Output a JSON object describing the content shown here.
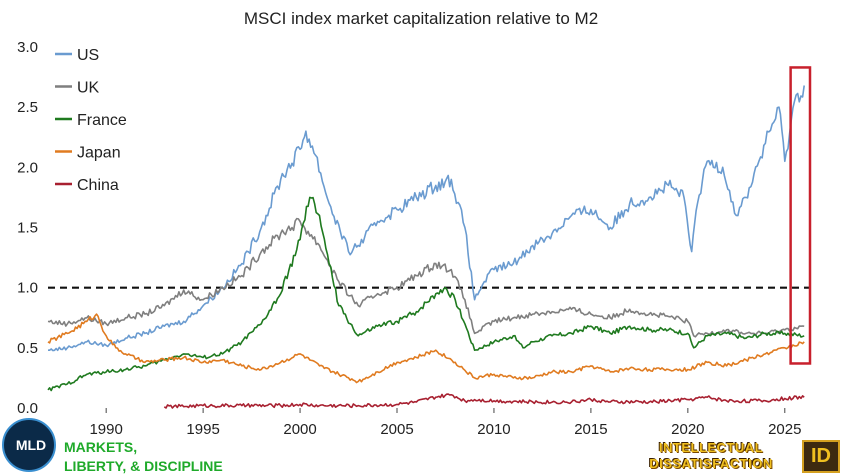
{
  "chart_data": {
    "type": "line",
    "title": "MSCI index market capitalization relative to M2",
    "xlabel": "",
    "ylabel": "",
    "xlim": [
      1987.0,
      2026.3
    ],
    "ylim": [
      0.0,
      3.0
    ],
    "x_ticks": [
      1990,
      1995,
      2000,
      2005,
      2010,
      2015,
      2020,
      2025
    ],
    "y_ticks": [
      "0.0",
      "0.5",
      "1.0",
      "1.5",
      "2.0",
      "2.5",
      "3.0"
    ],
    "reference_line": {
      "y": 1.0,
      "style": "dashed",
      "color": "#111111"
    },
    "highlight": {
      "x_from": 2025.3,
      "x_to": 2026.3,
      "y_from": 0.37,
      "y_to": 2.83,
      "color": "#c8202c"
    },
    "legend_position": "top-left",
    "series": [
      {
        "name": "US",
        "color": "#6a9bd0",
        "x": [
          1987.0,
          1988.0,
          1989.0,
          1990.0,
          1991.0,
          1992.0,
          1993.0,
          1994.0,
          1995.0,
          1996.0,
          1997.0,
          1998.0,
          1999.0,
          2000.0,
          2000.3,
          2000.8,
          2001.5,
          2002.5,
          2003.0,
          2004.0,
          2005.0,
          2006.0,
          2007.0,
          2007.8,
          2008.5,
          2009.0,
          2009.5,
          2010.0,
          2011.0,
          2012.0,
          2013.0,
          2014.0,
          2015.0,
          2016.0,
          2017.0,
          2018.0,
          2019.0,
          2019.8,
          2020.2,
          2020.5,
          2021.0,
          2021.8,
          2022.5,
          2023.0,
          2024.0,
          2024.7,
          2025.0,
          2025.5,
          2026.0
        ],
        "values": [
          0.48,
          0.5,
          0.55,
          0.52,
          0.58,
          0.62,
          0.68,
          0.72,
          0.85,
          1.0,
          1.2,
          1.5,
          1.9,
          2.15,
          2.3,
          2.1,
          1.7,
          1.3,
          1.35,
          1.55,
          1.65,
          1.75,
          1.85,
          1.9,
          1.5,
          0.9,
          1.05,
          1.15,
          1.2,
          1.35,
          1.45,
          1.6,
          1.65,
          1.5,
          1.7,
          1.75,
          1.85,
          1.75,
          1.3,
          1.7,
          2.05,
          2.0,
          1.6,
          1.75,
          2.2,
          2.5,
          2.05,
          2.55,
          2.68
        ]
      },
      {
        "name": "UK",
        "color": "#7f7f7f",
        "x": [
          1987.0,
          1988.0,
          1989.0,
          1990.0,
          1991.0,
          1992.0,
          1993.0,
          1994.0,
          1995.0,
          1996.0,
          1997.0,
          1998.0,
          1999.0,
          2000.0,
          2001.0,
          2002.0,
          2003.0,
          2004.0,
          2005.0,
          2006.0,
          2007.0,
          2007.8,
          2008.5,
          2009.0,
          2010.0,
          2011.0,
          2012.0,
          2013.0,
          2014.0,
          2015.0,
          2016.0,
          2017.0,
          2018.0,
          2019.0,
          2020.0,
          2020.3,
          2021.0,
          2022.0,
          2023.0,
          2024.0,
          2025.0,
          2026.0
        ],
        "values": [
          0.72,
          0.7,
          0.75,
          0.7,
          0.75,
          0.78,
          0.85,
          0.98,
          0.9,
          1.0,
          1.1,
          1.3,
          1.45,
          1.55,
          1.35,
          1.05,
          0.85,
          0.95,
          1.0,
          1.1,
          1.2,
          1.15,
          0.9,
          0.62,
          0.72,
          0.75,
          0.78,
          0.8,
          0.82,
          0.78,
          0.75,
          0.82,
          0.78,
          0.76,
          0.72,
          0.6,
          0.62,
          0.65,
          0.62,
          0.62,
          0.65,
          0.68
        ]
      },
      {
        "name": "France",
        "color": "#1f7a1f",
        "x": [
          1987.0,
          1988.0,
          1989.0,
          1990.0,
          1991.0,
          1992.0,
          1993.0,
          1994.0,
          1995.0,
          1996.0,
          1997.0,
          1998.0,
          1999.0,
          2000.0,
          2000.5,
          2001.0,
          2001.5,
          2002.0,
          2003.0,
          2004.0,
          2005.0,
          2006.0,
          2007.0,
          2007.5,
          2008.0,
          2008.5,
          2009.0,
          2010.0,
          2011.0,
          2011.5,
          2012.0,
          2013.0,
          2014.0,
          2015.0,
          2016.0,
          2017.0,
          2018.0,
          2019.0,
          2020.0,
          2020.3,
          2021.0,
          2022.0,
          2023.0,
          2024.0,
          2025.0,
          2026.0
        ],
        "values": [
          0.15,
          0.2,
          0.28,
          0.3,
          0.32,
          0.35,
          0.4,
          0.45,
          0.42,
          0.45,
          0.55,
          0.7,
          0.95,
          1.4,
          1.75,
          1.6,
          1.2,
          0.85,
          0.6,
          0.68,
          0.72,
          0.8,
          0.95,
          1.0,
          0.9,
          0.7,
          0.48,
          0.55,
          0.6,
          0.5,
          0.55,
          0.6,
          0.62,
          0.68,
          0.62,
          0.68,
          0.65,
          0.65,
          0.62,
          0.5,
          0.6,
          0.62,
          0.58,
          0.62,
          0.62,
          0.6
        ]
      },
      {
        "name": "Japan",
        "color": "#e07b20",
        "x": [
          1987.0,
          1988.0,
          1989.0,
          1989.5,
          1990.0,
          1990.5,
          1991.0,
          1992.0,
          1993.0,
          1994.0,
          1995.0,
          1996.0,
          1997.0,
          1998.0,
          1999.0,
          2000.0,
          2001.0,
          2002.0,
          2003.0,
          2004.0,
          2005.0,
          2006.0,
          2007.0,
          2008.0,
          2009.0,
          2010.0,
          2011.0,
          2012.0,
          2013.0,
          2014.0,
          2015.0,
          2016.0,
          2017.0,
          2018.0,
          2019.0,
          2020.0,
          2021.0,
          2022.0,
          2023.0,
          2024.0,
          2025.0,
          2026.0
        ],
        "values": [
          0.55,
          0.62,
          0.72,
          0.78,
          0.6,
          0.5,
          0.45,
          0.38,
          0.4,
          0.42,
          0.38,
          0.4,
          0.35,
          0.32,
          0.38,
          0.45,
          0.35,
          0.28,
          0.22,
          0.3,
          0.38,
          0.42,
          0.48,
          0.38,
          0.25,
          0.28,
          0.25,
          0.25,
          0.3,
          0.3,
          0.35,
          0.3,
          0.33,
          0.32,
          0.32,
          0.32,
          0.38,
          0.35,
          0.4,
          0.45,
          0.5,
          0.55
        ]
      },
      {
        "name": "China",
        "color": "#a82030",
        "x": [
          1993.0,
          1995.0,
          1997.0,
          1999.0,
          2000.0,
          2001.0,
          2003.0,
          2005.0,
          2006.0,
          2007.0,
          2007.8,
          2008.5,
          2009.0,
          2010.0,
          2012.0,
          2014.0,
          2015.0,
          2016.0,
          2018.0,
          2020.0,
          2021.0,
          2022.0,
          2024.0,
          2025.0,
          2026.0
        ],
        "values": [
          0.01,
          0.02,
          0.02,
          0.02,
          0.03,
          0.02,
          0.02,
          0.03,
          0.05,
          0.09,
          0.11,
          0.06,
          0.07,
          0.06,
          0.05,
          0.05,
          0.07,
          0.05,
          0.05,
          0.07,
          0.09,
          0.06,
          0.06,
          0.08,
          0.09
        ]
      }
    ]
  },
  "branding": {
    "left_logo_text": "MLD",
    "left_name_line1": "MARKETS,",
    "left_name_line2": "LIBERTY, & DISCIPLINE",
    "right_name_line1": "INTELLECTUAL",
    "right_name_line2": "DISSATISFACTION",
    "right_badge": "ID"
  }
}
